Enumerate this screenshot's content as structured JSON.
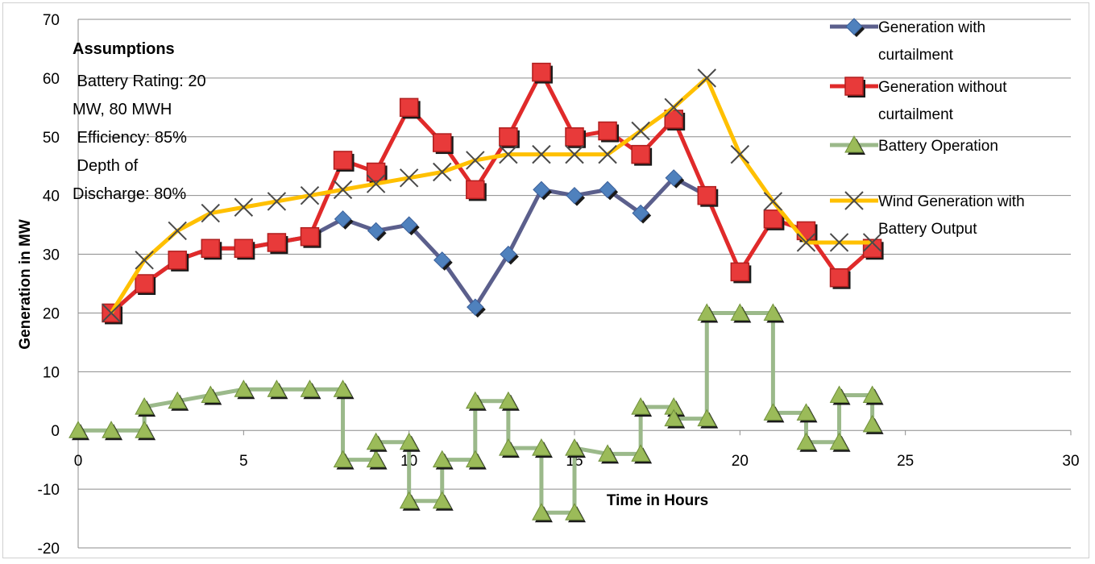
{
  "chart_data": {
    "type": "line",
    "xlabel": "Time in Hours",
    "ylabel": "Generation in MW",
    "xlim": [
      0,
      30
    ],
    "ylim": [
      -20,
      70
    ],
    "xticks": [
      0,
      5,
      10,
      15,
      20,
      25,
      30
    ],
    "yticks": [
      -20,
      -10,
      0,
      10,
      20,
      30,
      40,
      50,
      60,
      70
    ],
    "grid": "horizontal",
    "legend_position": "right",
    "annotation": {
      "title": "Assumptions",
      "lines": [
        " Battery Rating: 20",
        "MW, 80 MWH",
        " Efficiency: 85%",
        " Depth of",
        "Discharge: 80%"
      ]
    },
    "series": [
      {
        "name": "Generation with curtailment",
        "legend_lines": [
          "Generation with",
          "curtailment"
        ],
        "color": "#4f81bd",
        "line_color": "#5b5f8c",
        "marker": "diamond",
        "x": [
          1,
          2,
          3,
          4,
          5,
          6,
          7,
          8,
          9,
          10,
          11,
          12,
          13,
          14,
          15,
          16,
          17,
          18,
          19
        ],
        "y": [
          20,
          25,
          29,
          31,
          31,
          32,
          33,
          36,
          34,
          35,
          29,
          21,
          30,
          41,
          40,
          41,
          37,
          43,
          40
        ]
      },
      {
        "name": "Generation without curtailment",
        "legend_lines": [
          "Generation without",
          "curtailment"
        ],
        "color": "#e83a3a",
        "line_color": "#e02a2a",
        "marker": "square",
        "x": [
          1,
          2,
          3,
          4,
          5,
          6,
          7,
          8,
          9,
          10,
          11,
          12,
          13,
          14,
          15,
          16,
          17,
          18,
          19,
          20,
          21,
          22,
          23,
          24
        ],
        "y": [
          20,
          25,
          29,
          31,
          31,
          32,
          33,
          46,
          44,
          55,
          49,
          41,
          50,
          61,
          50,
          51,
          47,
          53,
          40,
          27,
          36,
          34,
          26,
          31
        ]
      },
      {
        "name": "Battery Operation",
        "legend_lines": [
          "Battery Operation"
        ],
        "color": "#9bbb59",
        "line_color": "#9bb98a",
        "marker": "triangle",
        "x": [
          0,
          1,
          2,
          2,
          3,
          4,
          5,
          6,
          7,
          8,
          8,
          9,
          9,
          10,
          10,
          11,
          11,
          12,
          12,
          13,
          13,
          14,
          14,
          15,
          15,
          16,
          17,
          17,
          18,
          18,
          19,
          19,
          20,
          21,
          21,
          22,
          22,
          23,
          23,
          24,
          24
        ],
        "y": [
          0,
          0,
          0,
          4,
          5,
          6,
          7,
          7,
          7,
          7,
          -5,
          -5,
          -2,
          -2,
          -12,
          -12,
          -5,
          -5,
          5,
          5,
          -3,
          -3,
          -14,
          -14,
          -3,
          -4,
          -4,
          4,
          4,
          2,
          2,
          20,
          20,
          20,
          3,
          3,
          -2,
          -2,
          6,
          6,
          1
        ]
      },
      {
        "name": "Wind Generation with Battery Output",
        "legend_lines": [
          "Wind Generation with",
          "Battery Output"
        ],
        "color": "#ffc000",
        "line_color": "#ffc000",
        "marker": "x",
        "x": [
          1,
          2,
          3,
          4,
          5,
          6,
          7,
          8,
          9,
          10,
          11,
          12,
          13,
          14,
          15,
          16,
          17,
          18,
          19,
          20,
          21,
          22,
          23,
          24
        ],
        "y": [
          20,
          29,
          34,
          37,
          38,
          39,
          40,
          41,
          42,
          43,
          44,
          46,
          47,
          47,
          47,
          47,
          51,
          55,
          60,
          47,
          39,
          32,
          32,
          32
        ]
      }
    ]
  }
}
